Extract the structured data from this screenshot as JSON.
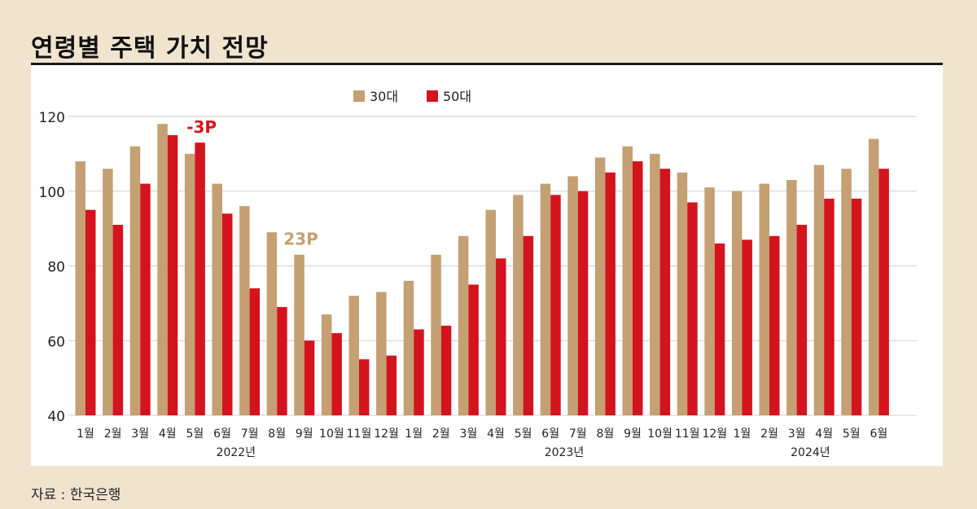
{
  "title": "연령별 주택 가치 전망",
  "source": "자료 : 한국은행",
  "colors": {
    "s30": "#c4a073",
    "s50": "#d3141f",
    "grid": "#cfcfcf",
    "axisText": "#222222"
  },
  "chart_data": {
    "type": "bar",
    "title": "연령별 주택 가치 전망",
    "xlabel": "",
    "ylabel": "",
    "ylim": [
      40,
      120
    ],
    "yticks": [
      40,
      60,
      80,
      100,
      120
    ],
    "grid": true,
    "legend_position": "top-center",
    "categories": [
      "1월",
      "2월",
      "3월",
      "4월",
      "5월",
      "6월",
      "7월",
      "8월",
      "9월",
      "10월",
      "11월",
      "12월",
      "1월",
      "2월",
      "3월",
      "4월",
      "5월",
      "6월",
      "7월",
      "8월",
      "9월",
      "10월",
      "11월",
      "12월",
      "1월",
      "2월",
      "3월",
      "4월",
      "5월",
      "6월"
    ],
    "years": [
      {
        "label": "2022년",
        "start": 0,
        "end": 11
      },
      {
        "label": "2023년",
        "start": 12,
        "end": 23
      },
      {
        "label": "2024년",
        "start": 24,
        "end": 29
      }
    ],
    "series": [
      {
        "name": "30대",
        "values": [
          108,
          106,
          112,
          118,
          110,
          102,
          96,
          89,
          83,
          67,
          72,
          73,
          76,
          83,
          88,
          95,
          99,
          102,
          104,
          109,
          112,
          110,
          105,
          101,
          100,
          102,
          103,
          107,
          106,
          114
        ]
      },
      {
        "name": "50대",
        "values": [
          95,
          91,
          102,
          115,
          113,
          94,
          74,
          69,
          60,
          62,
          55,
          56,
          63,
          64,
          75,
          82,
          88,
          99,
          100,
          105,
          108,
          106,
          97,
          86,
          87,
          88,
          91,
          98,
          98,
          106
        ]
      }
    ],
    "annotations": [
      {
        "text": "-3P",
        "category_index": 4,
        "series": "50대"
      },
      {
        "text": "23P",
        "category_index": 8,
        "series": "30대"
      }
    ]
  }
}
